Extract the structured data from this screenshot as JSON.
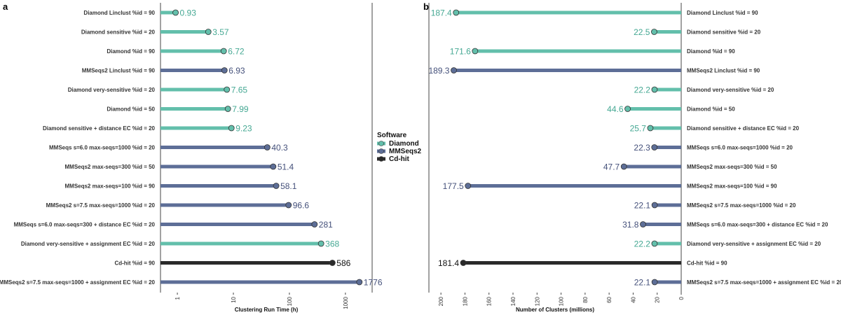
{
  "colors": {
    "Diamond": "#63bfab",
    "MMSeqs2": "#5d6e97",
    "Cd-hit": "#2a2a2a",
    "Diamond_text": "#45a893",
    "MMSeqs2_text": "#44507a",
    "Cd-hit_text": "#111111"
  },
  "legend": {
    "title": "Software",
    "entries": [
      "Diamond",
      "MMSeqs2",
      "Cd-hit"
    ]
  },
  "chart_data": [
    {
      "type": "bar",
      "panel": "a",
      "xlabel": "Clustering Run Time (h)",
      "scale": "log",
      "xlim": [
        0.5,
        3000
      ],
      "ticks": [
        1,
        10,
        100,
        1000
      ],
      "tick_labels": [
        "1",
        "10",
        "100",
        "1000"
      ],
      "categories": [
        "Diamond Linclust %id = 90",
        "Diamond sensitive %id = 20",
        "Diamond %id = 90",
        "MMSeqs2 Linclust %id = 90",
        "Diamond very-sensitive %id = 20",
        "Diamond %id = 50",
        "Diamond sensitive + distance EC %id = 20",
        "MMSeqs s=6.0 max-seqs=1000 %id = 20",
        "MMSeqs2 max-seqs=300 %id = 50",
        "MMSeqs2 max-seqs=100 %id = 90",
        "MMSeqs2 s=7.5 max-seqs=1000 %id = 20",
        "MMSeqs s=6.0 max-seqs=300 + distance EC %id = 20",
        "Diamond very-sensitive + assignment EC %id = 20",
        "Cd-hit %id = 90",
        "MMSeqs2 s=7.5 max-seqs=1000 + assignment EC %id = 20"
      ],
      "software": [
        "Diamond",
        "Diamond",
        "Diamond",
        "MMSeqs2",
        "Diamond",
        "Diamond",
        "Diamond",
        "MMSeqs2",
        "MMSeqs2",
        "MMSeqs2",
        "MMSeqs2",
        "MMSeqs2",
        "Diamond",
        "Cd-hit",
        "MMSeqs2"
      ],
      "values": [
        0.93,
        3.57,
        6.72,
        6.93,
        7.65,
        7.99,
        9.23,
        40.3,
        51.4,
        58.1,
        96.6,
        281,
        368,
        586,
        1776
      ],
      "value_labels": [
        "0.93",
        "3.57",
        "6.72",
        "6.93",
        "7.65",
        "7.99",
        "9.23",
        "40.3",
        "51.4",
        "58.1",
        "96.6",
        "281",
        "368",
        "586",
        "1776"
      ]
    },
    {
      "type": "bar",
      "panel": "b",
      "xlabel": "Number of Clusters (millions)",
      "scale": "linear-reversed",
      "xlim": [
        0,
        210
      ],
      "ticks": [
        200,
        180,
        160,
        140,
        120,
        100,
        80,
        60,
        40,
        20,
        0
      ],
      "tick_labels": [
        "200",
        "180",
        "160",
        "140",
        "120",
        "100",
        "80",
        "60",
        "40",
        "20",
        "0"
      ],
      "categories": [
        "Diamond Linclust %id = 90",
        "Diamond sensitive %id = 20",
        "Diamond %id = 90",
        "MMSeqs2 Linclust %id = 90",
        "Diamond very-sensitive %id = 20",
        "Diamond %id = 50",
        "Diamond sensitive + distance EC %id = 20",
        "MMSeqs s=6.0 max-seqs=1000 %id = 20",
        "MMSeqs2 max-seqs=300 %id = 50",
        "MMSeqs2 max-seqs=100 %id = 90",
        "MMSeqs2 s=7.5 max-seqs=1000 %id = 20",
        "MMSeqs s=6.0 max-seqs=300 + distance EC %id = 20",
        "Diamond very-sensitive + assignment EC %id = 20",
        "Cd-hit %id = 90",
        "MMSeqs2 s=7.5 max-seqs=1000 + assignment EC %id = 20"
      ],
      "software": [
        "Diamond",
        "Diamond",
        "Diamond",
        "MMSeqs2",
        "Diamond",
        "Diamond",
        "Diamond",
        "MMSeqs2",
        "MMSeqs2",
        "MMSeqs2",
        "MMSeqs2",
        "MMSeqs2",
        "Diamond",
        "Cd-hit",
        "MMSeqs2"
      ],
      "values": [
        187.4,
        22.5,
        171.6,
        189.3,
        22.2,
        44.6,
        25.7,
        22.3,
        47.7,
        177.5,
        22.1,
        31.8,
        22.2,
        181.4,
        22.1
      ],
      "value_labels": [
        "187.4",
        "22.5",
        "171.6",
        "189.3",
        "22.2",
        "44.6",
        "25.7",
        "22.3",
        "47.7",
        "177.5",
        "22.1",
        "31.8",
        "22.2",
        "181.4",
        "22.1"
      ]
    }
  ]
}
